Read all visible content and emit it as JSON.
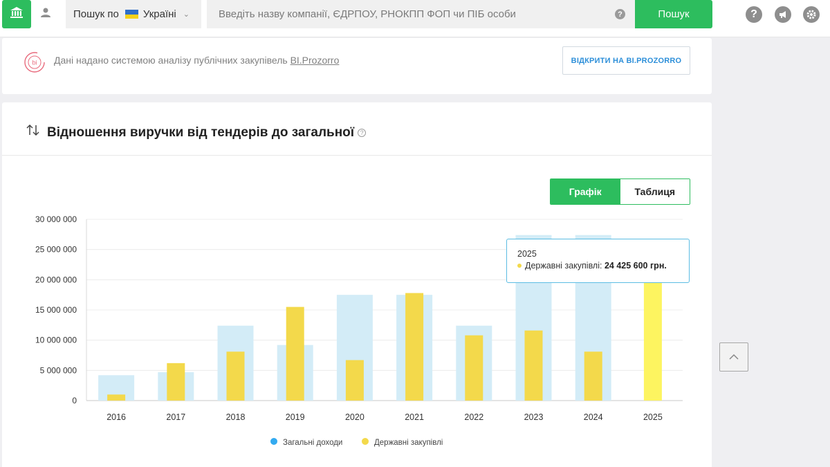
{
  "topbar": {
    "search_prefix": "Пошук по",
    "country": "Україні",
    "search_placeholder": "Введіть назву компанії, ЄДРПОУ, РНОКПП ФОП чи ПІБ особи",
    "search_button": "Пошук",
    "icons": [
      "home-icon",
      "user-icon",
      "help-icon",
      "announcement-icon",
      "settings-icon"
    ]
  },
  "source": {
    "logo_text": "bi",
    "text": "Дані надано системою аналізу публічних закупівель ",
    "link": "BI.Prozorro",
    "button": "ВІДКРИТИ НА BI.PROZORRO"
  },
  "section": {
    "title": "Відношення виручки від тендерів до загальної",
    "help": "?",
    "toggle_chart": "Графік",
    "toggle_table": "Таблиця"
  },
  "tooltip": {
    "year": "2025",
    "label": "Державні закупівлі: ",
    "value": "24 425 600 грн."
  },
  "colors": {
    "accent": "#2dbd5e",
    "total": "#d3ecf7",
    "total_legend": "#33aaf0",
    "gov": "#f3d94b",
    "gov_highlight": "#fdf460"
  },
  "chart_data": {
    "type": "bar",
    "categories": [
      "2016",
      "2017",
      "2018",
      "2019",
      "2020",
      "2021",
      "2022",
      "2023",
      "2024",
      "2025"
    ],
    "series": [
      {
        "name": "Загальні доходи",
        "values": [
          4200000,
          4700000,
          12400000,
          9200000,
          17500000,
          17500000,
          12400000,
          27400000,
          27400000,
          0
        ]
      },
      {
        "name": "Державні закупівлі",
        "values": [
          1000000,
          6200000,
          8100000,
          15500000,
          6700000,
          17800000,
          10800000,
          11600000,
          8100000,
          24425600
        ]
      }
    ],
    "yticks": [
      "0",
      "5 000 000",
      "10 000 000",
      "15 000 000",
      "20 000 000",
      "25 000 000",
      "30 000 000"
    ],
    "ylim": [
      0,
      30000000
    ],
    "legend_position": "bottom",
    "grid": true
  }
}
